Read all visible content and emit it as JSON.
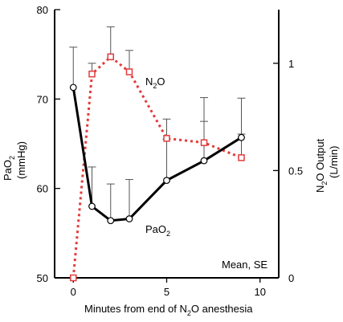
{
  "chart_data": {
    "type": "line",
    "xlabel_main": "Minutes from end of N",
    "xlabel_sub": "2",
    "xlabel_tail": "O anesthesia",
    "xlim": [
      -1,
      11
    ],
    "x_ticks": [
      0,
      5,
      10
    ],
    "y_left": {
      "label_line1": "PaO",
      "label_line1_sub": "2",
      "label_line2": "(mmHg)",
      "lim": [
        50,
        80
      ],
      "ticks": [
        50,
        60,
        70,
        80
      ]
    },
    "y_right": {
      "label_line1_a": "N",
      "label_line1_sub": "2",
      "label_line1_b": "O Output",
      "label_line2": "(L/min)",
      "lim": [
        0,
        1.25
      ],
      "ticks": [
        0,
        0.5,
        1
      ],
      "tick_labels": [
        "0",
        "0.5",
        "1"
      ]
    },
    "series": [
      {
        "name_main": "PaO",
        "name_sub": "2",
        "axis": "left",
        "color": "#000000",
        "marker": "circle",
        "x": [
          0,
          1,
          2,
          3,
          5,
          7,
          9
        ],
        "y": [
          71.3,
          58.0,
          56.4,
          56.6,
          60.9,
          63.1,
          65.7
        ],
        "err": [
          4.5,
          4.4,
          4.1,
          4.4,
          4.6,
          4.4,
          4.4
        ]
      },
      {
        "name_main": "N",
        "name_sub": "2",
        "name_tail": "O",
        "axis": "right",
        "color": "#e23b3b",
        "marker": "square",
        "x": [
          0,
          1,
          2,
          3,
          5,
          7,
          9
        ],
        "y": [
          0.0,
          0.95,
          1.03,
          0.96,
          0.65,
          0.63,
          0.56
        ],
        "err": [
          0,
          0.05,
          0.14,
          0.1,
          0.09,
          0.21,
          0.11
        ]
      }
    ],
    "annotation": "Mean, SE",
    "grid": false,
    "legend": "inline labels"
  }
}
